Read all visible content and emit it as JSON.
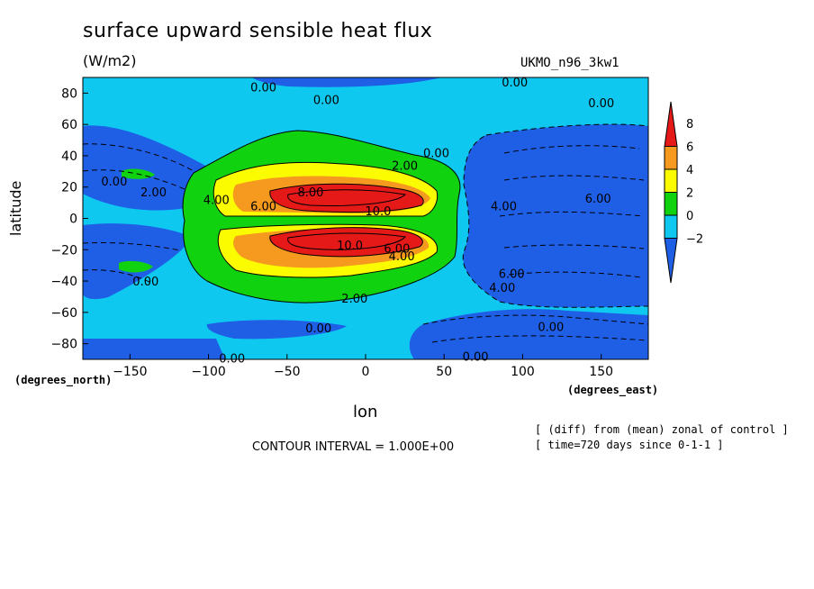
{
  "header": {
    "title": "surface upward sensible heat flux",
    "units": "(W/m2)",
    "model": "UKMO_n96_3kw1"
  },
  "footer": {
    "contour_interval": "CONTOUR INTERVAL = 1.000E+00",
    "note_line1": "[ (diff) from (mean) zonal of control ]",
    "note_line2": "[ time=720 days since 0-1-1 ]"
  },
  "colors": {
    "dark_blue": "#1e5fe6",
    "light_blue": "#0fc8f0",
    "green": "#10d20f",
    "yellow": "#fcfc00",
    "orange": "#f59a1e",
    "red": "#e61919"
  },
  "chart_data": {
    "type": "heatmap",
    "subtype": "filled contour map",
    "title": "surface upward sensible heat flux",
    "units": "(W/m2)",
    "xlabel": "lon",
    "ylabel": "latitude",
    "xunits": "(degrees_east)",
    "yunits": "(degrees_north)",
    "xlim": [
      -180,
      180
    ],
    "ylim": [
      -90,
      90
    ],
    "xticks": [
      -150,
      -100,
      -50,
      0,
      50,
      100,
      150
    ],
    "yticks": [
      80,
      60,
      40,
      20,
      0,
      -20,
      -40,
      -60,
      -80
    ],
    "colorbar": {
      "levels": [
        8,
        6,
        4,
        2,
        0,
        -2
      ],
      "bins": [
        {
          "range": "> 8",
          "color": "#e61919"
        },
        {
          "range": "6 to 8",
          "color": "#f59a1e"
        },
        {
          "range": "4 to 6",
          "color": "#fcfc00"
        },
        {
          "range": "2 to 4",
          "color": "#10d20f"
        },
        {
          "range": "0 to 2",
          "color": "#0fc8f0"
        },
        {
          "range": "-2 to 0",
          "color": "#1e5fe6"
        }
      ]
    },
    "contour_interval": 1.0,
    "contour_labels": [
      {
        "text": "0.00",
        "lon": -65,
        "lat": 84
      },
      {
        "text": "0.00",
        "lon": -25,
        "lat": 76
      },
      {
        "text": "0.00",
        "lon": 95,
        "lat": 87
      },
      {
        "text": "0.00",
        "lon": 150,
        "lat": 74
      },
      {
        "text": "0.00",
        "lon": 45,
        "lat": 42
      },
      {
        "text": "2.00",
        "lon": 25,
        "lat": 34
      },
      {
        "text": "0.00",
        "lon": -160,
        "lat": 24
      },
      {
        "text": "2.00",
        "lon": -135,
        "lat": 17
      },
      {
        "text": "4.00",
        "lon": -95,
        "lat": 12
      },
      {
        "text": "6.00",
        "lon": -65,
        "lat": 8
      },
      {
        "text": "8.00",
        "lon": -35,
        "lat": 17
      },
      {
        "text": "10.0",
        "lon": 8,
        "lat": 5
      },
      {
        "text": "10.0",
        "lon": -10,
        "lat": -17
      },
      {
        "text": "6.00",
        "lon": 20,
        "lat": -19
      },
      {
        "text": "4.00",
        "lon": 23,
        "lat": -24
      },
      {
        "text": "4.00",
        "lon": 88,
        "lat": 8
      },
      {
        "text": "6.00",
        "lon": 148,
        "lat": 13
      },
      {
        "text": "6.00",
        "lon": 93,
        "lat": -35
      },
      {
        "text": "4.00",
        "lon": 87,
        "lat": -44
      },
      {
        "text": "0.00",
        "lon": -140,
        "lat": -40
      },
      {
        "text": "2.00",
        "lon": -7,
        "lat": -51
      },
      {
        "text": "0.00",
        "lon": -30,
        "lat": -70
      },
      {
        "text": "0.00",
        "lon": 118,
        "lat": -69
      },
      {
        "text": "0.00",
        "lon": -85,
        "lat": -89
      },
      {
        "text": "0.00",
        "lon": 70,
        "lat": -88
      }
    ]
  }
}
